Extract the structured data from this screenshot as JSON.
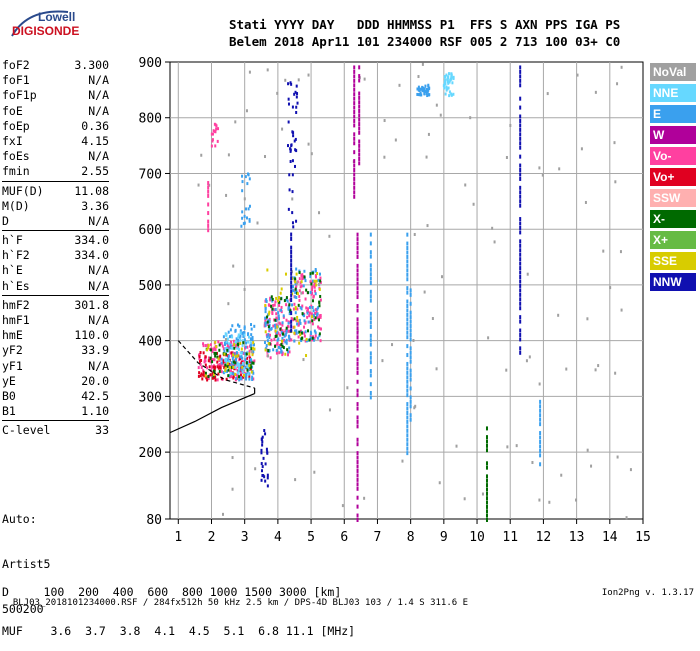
{
  "logo": {
    "top": "Lowell",
    "bottom": "DIGISONDE"
  },
  "header": {
    "line1": "Stati YYYY DAY   DDD HHMMSS P1  FFS S AXN PPS IGA PS",
    "line2": "Belem 2018 Apr11 101 234000 RSF 005 2 713 100 03+ C0"
  },
  "params": [
    [
      [
        "foF2",
        "3.300"
      ],
      [
        "foF1",
        "N/A"
      ],
      [
        "foF1p",
        "N/A"
      ],
      [
        "foE",
        "N/A"
      ],
      [
        "foEp",
        "0.36"
      ],
      [
        "fxI",
        "4.15"
      ],
      [
        "foEs",
        "N/A"
      ],
      [
        "fmin",
        "2.55"
      ]
    ],
    [
      [
        "MUF(D)",
        "11.08"
      ],
      [
        "M(D)",
        "3.36"
      ],
      [
        "D",
        "N/A"
      ]
    ],
    [
      [
        "h`F",
        "334.0"
      ],
      [
        "h`F2",
        "334.0"
      ],
      [
        "h`E",
        "N/A"
      ],
      [
        "h`Es",
        "N/A"
      ]
    ],
    [
      [
        "hmF2",
        "301.8"
      ],
      [
        "hmF1",
        "N/A"
      ],
      [
        "hmE",
        "110.0"
      ],
      [
        "yF2",
        "33.9"
      ],
      [
        "yF1",
        "N/A"
      ],
      [
        "yE",
        "20.0"
      ],
      [
        "B0",
        "42.5"
      ],
      [
        "B1",
        "1.10"
      ]
    ],
    [
      [
        "C-level",
        "33"
      ]
    ]
  ],
  "auto": [
    "Auto:",
    "Artist5",
    "500200"
  ],
  "dmuf": {
    "d_line": "D     100  200  400  600  800 1000 1500 3000 [km]",
    "muf_line": "MUF    3.6  3.7  3.8  4.1  4.5  5.1  6.8 11.1 [MHz]"
  },
  "footer": {
    "left": "BLJ03_2018101234000.RSF / 284fx512h 50 kHz 2.5 km / DPS-4D BLJ03 103 / 1.4 S 311.6 E",
    "right": "Ion2Png v. 1.3.17"
  },
  "legend": [
    {
      "label": "NoVal",
      "color": "#a0a0a0"
    },
    {
      "label": "NNE",
      "color": "#66d8ff"
    },
    {
      "label": "E",
      "color": "#3aa0ee"
    },
    {
      "label": "W",
      "color": "#b0009a"
    },
    {
      "label": "Vo-",
      "color": "#ff40a0"
    },
    {
      "label": "Vo+",
      "color": "#e00020"
    },
    {
      "label": "SSW",
      "color": "#ffb0b0"
    },
    {
      "label": "X-",
      "color": "#006a00"
    },
    {
      "label": "X+",
      "color": "#66bb44"
    },
    {
      "label": "SSE",
      "color": "#d8cc00"
    },
    {
      "label": "NNW",
      "color": "#1010b0"
    }
  ],
  "chart_data": {
    "type": "scatter",
    "xlabel": "",
    "ylabel": "",
    "xlim": [
      0.75,
      15
    ],
    "ylim": [
      80,
      900
    ],
    "x_ticks": [
      1,
      2,
      3,
      4,
      5,
      6,
      7,
      8,
      9,
      10,
      11,
      12,
      13,
      14,
      15
    ],
    "y_ticks": [
      80,
      200,
      300,
      400,
      500,
      600,
      700,
      800,
      900
    ],
    "grid": true,
    "clusters": [
      {
        "color": "#ff40a0",
        "x": [
          1.6,
          3.3
        ],
        "y": [
          330,
          400
        ],
        "n": 140
      },
      {
        "color": "#e00020",
        "x": [
          1.6,
          3.2
        ],
        "y": [
          330,
          380
        ],
        "n": 90
      },
      {
        "color": "#3aa0ee",
        "x": [
          2.3,
          3.3
        ],
        "y": [
          330,
          430
        ],
        "n": 110
      },
      {
        "color": "#66d8ff",
        "x": [
          2.4,
          3.2
        ],
        "y": [
          340,
          420
        ],
        "n": 60
      },
      {
        "color": "#006a00",
        "x": [
          1.8,
          3.3
        ],
        "y": [
          335,
          400
        ],
        "n": 40
      },
      {
        "color": "#d8cc00",
        "x": [
          1.8,
          3.3
        ],
        "y": [
          335,
          400
        ],
        "n": 30
      },
      {
        "color": "#ff40a0",
        "x": [
          3.6,
          4.4
        ],
        "y": [
          370,
          480
        ],
        "n": 90
      },
      {
        "color": "#3aa0ee",
        "x": [
          3.6,
          4.4
        ],
        "y": [
          380,
          480
        ],
        "n": 80
      },
      {
        "color": "#006a00",
        "x": [
          3.6,
          4.4
        ],
        "y": [
          380,
          480
        ],
        "n": 30
      },
      {
        "color": "#ff40a0",
        "x": [
          4.4,
          5.3
        ],
        "y": [
          400,
          530
        ],
        "n": 100
      },
      {
        "color": "#3aa0ee",
        "x": [
          4.4,
          5.3
        ],
        "y": [
          400,
          530
        ],
        "n": 70
      },
      {
        "color": "#006a00",
        "x": [
          4.4,
          5.3
        ],
        "y": [
          400,
          530
        ],
        "n": 30
      },
      {
        "color": "#d8cc00",
        "x": [
          3.6,
          5.3
        ],
        "y": [
          370,
          530
        ],
        "n": 40
      },
      {
        "color": "#1010b0",
        "x": [
          4.3,
          4.6
        ],
        "y": [
          600,
          900
        ],
        "n": 40
      },
      {
        "color": "#1010b0",
        "x": [
          3.5,
          3.7
        ],
        "y": [
          130,
          240
        ],
        "n": 25
      },
      {
        "color": "#3aa0ee",
        "x": [
          8.2,
          8.6
        ],
        "y": [
          840,
          860
        ],
        "n": 40
      },
      {
        "color": "#66d8ff",
        "x": [
          9.0,
          9.3
        ],
        "y": [
          840,
          880
        ],
        "n": 40
      },
      {
        "color": "#ff40a0",
        "x": [
          2.0,
          2.2
        ],
        "y": [
          750,
          790
        ],
        "n": 15
      },
      {
        "color": "#3aa0ee",
        "x": [
          2.9,
          3.2
        ],
        "y": [
          600,
          700
        ],
        "n": 20
      },
      {
        "color": "#a0a0a0",
        "x": [
          1.5,
          14.8
        ],
        "y": [
          80,
          900
        ],
        "n": 120
      }
    ],
    "columns": [
      {
        "color": "#b0009a",
        "x": 6.3,
        "y": [
          660,
          900
        ]
      },
      {
        "color": "#b0009a",
        "x": 6.45,
        "y": [
          720,
          900
        ]
      },
      {
        "color": "#b0009a",
        "x": 6.4,
        "y": [
          80,
          600
        ]
      },
      {
        "color": "#1010b0",
        "x": 11.3,
        "y": [
          380,
          900
        ]
      },
      {
        "color": "#3aa0ee",
        "x": 7.9,
        "y": [
          200,
          600
        ]
      },
      {
        "color": "#3aa0ee",
        "x": 8.0,
        "y": [
          260,
          500
        ]
      },
      {
        "color": "#3aa0ee",
        "x": 6.8,
        "y": [
          300,
          600
        ]
      },
      {
        "color": "#006a00",
        "x": 10.3,
        "y": [
          80,
          260
        ]
      },
      {
        "color": "#1010b0",
        "x": 4.4,
        "y": [
          420,
          600
        ]
      },
      {
        "color": "#3aa0ee",
        "x": 11.9,
        "y": [
          180,
          300
        ]
      },
      {
        "color": "#ff40a0",
        "x": 1.9,
        "y": [
          600,
          700
        ]
      }
    ],
    "profile_lines": [
      {
        "style": "dashed",
        "points": [
          [
            1,
            400
          ],
          [
            1.6,
            360
          ],
          [
            2.4,
            330
          ],
          [
            3.3,
            315
          ]
        ]
      },
      {
        "style": "solid",
        "points": [
          [
            0.75,
            235
          ],
          [
            1.5,
            255
          ],
          [
            2.3,
            280
          ],
          [
            3.3,
            305
          ]
        ]
      }
    ]
  }
}
